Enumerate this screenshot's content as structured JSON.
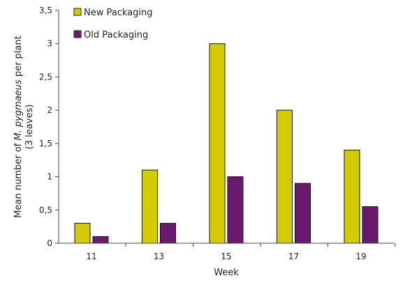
{
  "chart_data": {
    "type": "bar",
    "title": "",
    "xlabel": "Week",
    "ylabel_line1_prefix": "Mean number of ",
    "ylabel_line1_italic": "M. pygmaeus",
    "ylabel_line1_suffix": " per plant",
    "ylabel_line2": "(3 leaves)",
    "categories": [
      "11",
      "13",
      "15",
      "17",
      "19"
    ],
    "ylim": [
      0,
      3.5
    ],
    "yticks": [
      "0",
      "0,5",
      "1",
      "1,5",
      "2",
      "2,5",
      "3",
      "3,5"
    ],
    "ytick_values": [
      0,
      0.5,
      1,
      1.5,
      2,
      2.5,
      3,
      3.5
    ],
    "grid": false,
    "legend_position": "top-left",
    "series": [
      {
        "name": "New Packaging",
        "color": "#d4cc00",
        "values": [
          0.3,
          1.1,
          3.0,
          2.0,
          1.4
        ]
      },
      {
        "name": "Old Packaging",
        "color": "#6a1a6e",
        "values": [
          0.1,
          0.3,
          1.0,
          0.9,
          0.55
        ]
      }
    ]
  }
}
